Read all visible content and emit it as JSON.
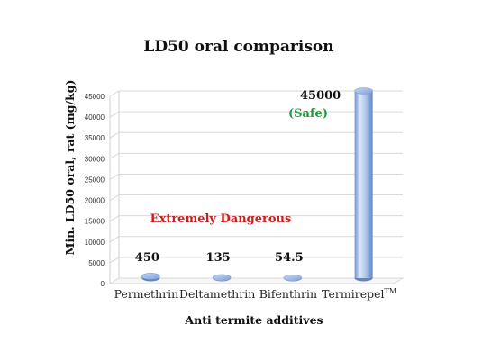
{
  "chart_data": {
    "type": "bar",
    "title": "LD50 oral comparison",
    "xlabel": "Anti termite additives",
    "ylabel": "Min. LD50 oral, rat (mg/kg)",
    "categories": [
      "Permethrin",
      "Deltamethrin",
      "Bifenthrin",
      "Termirepel"
    ],
    "category_superscripts": [
      "",
      "",
      "",
      "TM"
    ],
    "values": [
      450,
      135,
      54.5,
      45000
    ],
    "value_labels": [
      "450",
      "135",
      "54.5",
      "45000"
    ],
    "ylim": [
      0,
      45000
    ],
    "yticks": [
      0,
      5000,
      10000,
      15000,
      20000,
      25000,
      30000,
      35000,
      40000,
      45000
    ],
    "grid": true,
    "annotations": {
      "danger": "Extremely Dangerous",
      "safe": "(Safe)"
    },
    "colors": {
      "bar_light": "#dbe7f7",
      "bar_mid": "#9bb9e4",
      "bar_dark": "#5f86c4",
      "danger": "#cc1f1f",
      "safe": "#1f9a3a",
      "grid": "#d9d9d9"
    }
  }
}
